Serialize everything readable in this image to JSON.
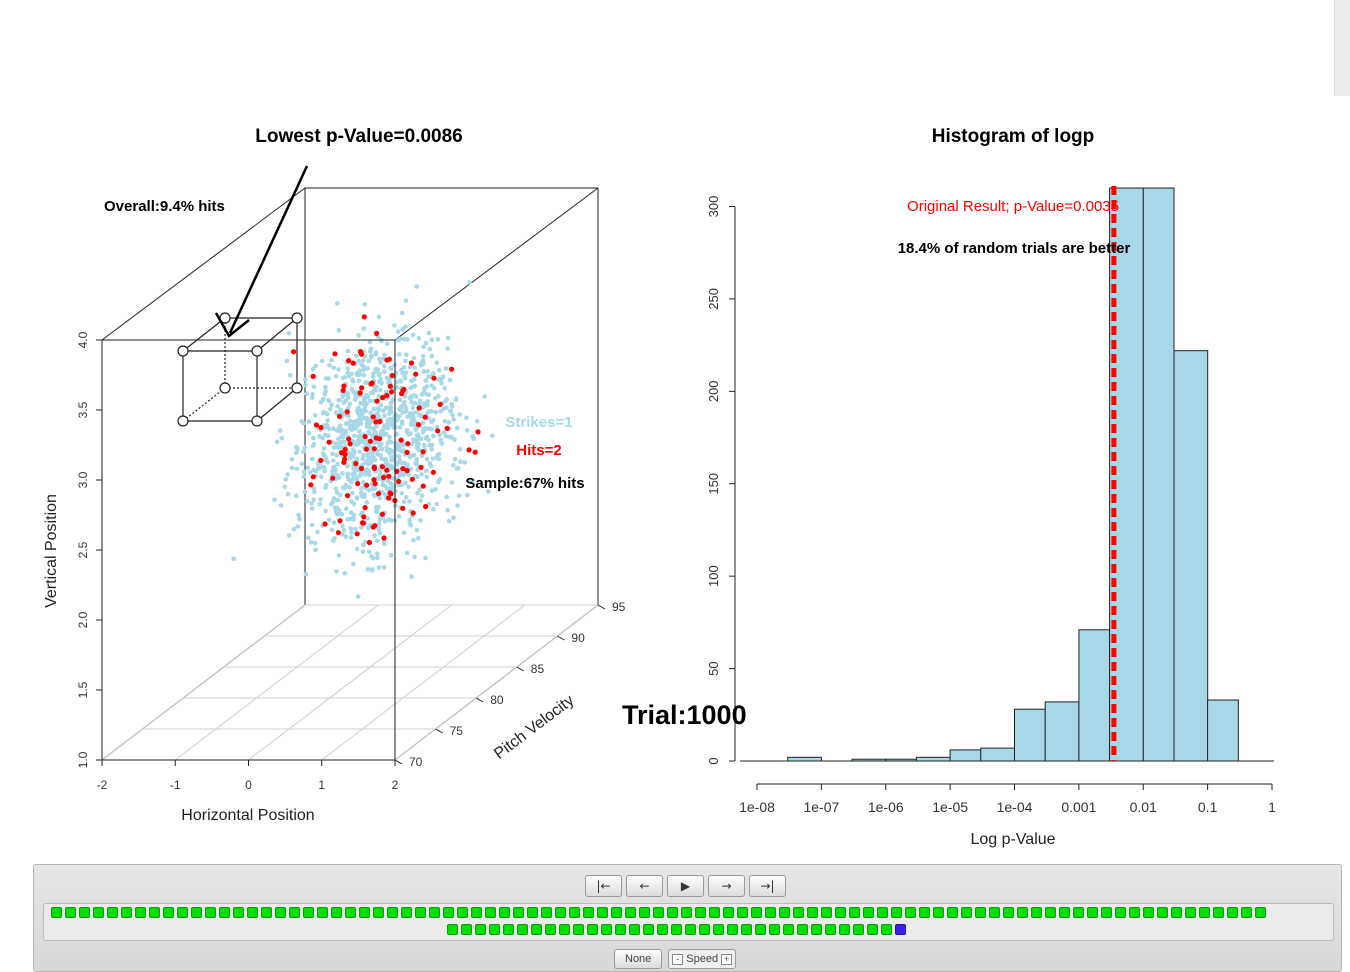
{
  "chart_data": [
    {
      "type": "scatter",
      "subtype": "3d-scatter",
      "title": "Lowest p-Value=0.0086",
      "xlabel": "Horizontal Position",
      "ylabel": "Vertical Position",
      "zlabel": "Pitch Velocity",
      "xlim": [
        -2,
        2
      ],
      "ylim": [
        1.0,
        4.0
      ],
      "zlim": [
        70,
        95
      ],
      "x_ticks": [
        "-2",
        "-1",
        "0",
        "1",
        "2"
      ],
      "y_ticks": [
        "1.0",
        "1.5",
        "2.0",
        "2.5",
        "3.0",
        "3.5",
        "4.0"
      ],
      "z_ticks": [
        "70",
        "75",
        "80",
        "85",
        "90",
        "95"
      ],
      "annotations": {
        "overall": "Overall:9.4% hits",
        "sample": "Sample:67% hits"
      },
      "legend": [
        {
          "name": "Strikes=1",
          "color": "#a6d8e7"
        },
        {
          "name": "Hits=2",
          "color": "#ff0000"
        }
      ],
      "series": [
        {
          "name": "Strikes=1",
          "color": "#a6d8e7",
          "count": 1050
        },
        {
          "name": "Hits=2",
          "color": "#ff0000",
          "count": 110
        }
      ]
    },
    {
      "type": "bar",
      "subtype": "histogram",
      "title": "Histogram of logp",
      "xlabel": "Log p-Value",
      "ylabel": "",
      "x_scale": "log",
      "x_ticks": [
        "1e-08",
        "1e-07",
        "1e-06",
        "1e-05",
        "1e-04",
        "0.001",
        "0.01",
        "0.1",
        "1"
      ],
      "y_ticks": [
        "0",
        "50",
        "100",
        "150",
        "200",
        "250",
        "300"
      ],
      "ylim": [
        0,
        310
      ],
      "bars": [
        {
          "x_start": 3e-08,
          "x_end": 1e-07,
          "count": 2
        },
        {
          "x_start": 1e-07,
          "x_end": 3e-07,
          "count": 0
        },
        {
          "x_start": 3e-07,
          "x_end": 1e-06,
          "count": 1
        },
        {
          "x_start": 1e-06,
          "x_end": 3e-06,
          "count": 1
        },
        {
          "x_start": 3e-06,
          "x_end": 1e-05,
          "count": 2
        },
        {
          "x_start": 1e-05,
          "x_end": 3e-05,
          "count": 6
        },
        {
          "x_start": 3e-05,
          "x_end": 0.0001,
          "count": 7
        },
        {
          "x_start": 0.0001,
          "x_end": 0.0003,
          "count": 28
        },
        {
          "x_start": 0.0003,
          "x_end": 0.001,
          "count": 32
        },
        {
          "x_start": 0.001,
          "x_end": 0.003,
          "count": 71
        },
        {
          "x_start": 0.003,
          "x_end": 0.01,
          "count": 310
        },
        {
          "x_start": 0.01,
          "x_end": 0.03,
          "count": 310
        },
        {
          "x_start": 0.03,
          "x_end": 0.1,
          "count": 222
        },
        {
          "x_start": 0.1,
          "x_end": 0.3,
          "count": 33
        }
      ],
      "bar_color": "#a6d8e7",
      "reference_line": {
        "value": 0.0035,
        "color": "#ff0000",
        "style": "dashed"
      },
      "annotations": {
        "original_result": "Original Result; p-Value=0.0035",
        "better_fraction": "18.4% of random trials are better"
      }
    }
  ],
  "trial": "Trial:1000",
  "controls": {
    "nav_buttons": [
      {
        "name": "first-frame-button",
        "label": "|←"
      },
      {
        "name": "prev-frame-button",
        "label": "←"
      },
      {
        "name": "play-button",
        "label": "▶"
      },
      {
        "name": "next-frame-button",
        "label": "→"
      },
      {
        "name": "last-frame-button",
        "label": "→|"
      }
    ],
    "frames_row_1": 87,
    "frames_row_2": 33,
    "current_frame_position": "row 2, last",
    "frame_color": "#00e000",
    "current_frame_color": "#3a22ee",
    "none_label": "None",
    "speed_label": "Speed",
    "speed_minus": "-",
    "speed_plus": "+"
  }
}
